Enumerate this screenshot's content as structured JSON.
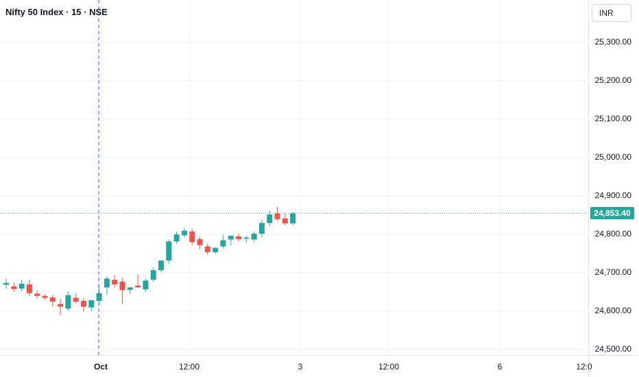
{
  "header": {
    "symbol_title": "Nifty 50 Index · 15 · NSE",
    "currency": "INR",
    "last_price_label": "24,853.40"
  },
  "colors": {
    "up": "#26a69a",
    "down": "#ef5350",
    "grid": "#f0f3fa",
    "axis_text": "#131722",
    "last_price_line": "#26a69a",
    "crosshair": "#2962ff"
  },
  "chart_data": {
    "type": "candlestick",
    "y_axis": {
      "min": 24500,
      "max": 25300,
      "ticks": [
        25300,
        25200,
        25100,
        25000,
        24900,
        24800,
        24700,
        24600,
        24500
      ],
      "tick_labels": [
        "25,300.00",
        "25,200.00",
        "25,100.00",
        "25,000.00",
        "24,900.00",
        "24,800.00",
        "24,700.00",
        "24,600.00",
        "24,500.00"
      ]
    },
    "x_axis": {
      "labels": [
        "Oct",
        "12:00",
        "3",
        "12:00",
        "6",
        "12:0"
      ]
    },
    "last_price": 24853.4,
    "candles": [
      {
        "o": 24667,
        "h": 24683,
        "l": 24657,
        "c": 24672
      },
      {
        "o": 24663,
        "h": 24673,
        "l": 24648,
        "c": 24656
      },
      {
        "o": 24657,
        "h": 24680,
        "l": 24650,
        "c": 24670
      },
      {
        "o": 24668,
        "h": 24681,
        "l": 24637,
        "c": 24645
      },
      {
        "o": 24644,
        "h": 24653,
        "l": 24631,
        "c": 24638
      },
      {
        "o": 24638,
        "h": 24643,
        "l": 24628,
        "c": 24633
      },
      {
        "o": 24634,
        "h": 24640,
        "l": 24610,
        "c": 24623
      },
      {
        "o": 24617,
        "h": 24631,
        "l": 24587,
        "c": 24610
      },
      {
        "o": 24605,
        "h": 24650,
        "l": 24600,
        "c": 24640
      },
      {
        "o": 24633,
        "h": 24645,
        "l": 24618,
        "c": 24623
      },
      {
        "o": 24625,
        "h": 24632,
        "l": 24597,
        "c": 24610
      },
      {
        "o": 24608,
        "h": 24627,
        "l": 24598,
        "c": 24627
      },
      {
        "o": 24625,
        "h": 24665,
        "l": 24615,
        "c": 24645
      },
      {
        "o": 24660,
        "h": 24688,
        "l": 24642,
        "c": 24683
      },
      {
        "o": 24680,
        "h": 24692,
        "l": 24660,
        "c": 24668
      },
      {
        "o": 24675,
        "h": 24685,
        "l": 24618,
        "c": 24653
      },
      {
        "o": 24654,
        "h": 24662,
        "l": 24643,
        "c": 24660
      },
      {
        "o": 24665,
        "h": 24695,
        "l": 24660,
        "c": 24660
      },
      {
        "o": 24655,
        "h": 24683,
        "l": 24648,
        "c": 24678
      },
      {
        "o": 24680,
        "h": 24712,
        "l": 24675,
        "c": 24705
      },
      {
        "o": 24705,
        "h": 24732,
        "l": 24700,
        "c": 24730
      },
      {
        "o": 24730,
        "h": 24785,
        "l": 24722,
        "c": 24780
      },
      {
        "o": 24780,
        "h": 24805,
        "l": 24774,
        "c": 24798
      },
      {
        "o": 24796,
        "h": 24815,
        "l": 24790,
        "c": 24808
      },
      {
        "o": 24806,
        "h": 24813,
        "l": 24770,
        "c": 24778
      },
      {
        "o": 24786,
        "h": 24792,
        "l": 24760,
        "c": 24770
      },
      {
        "o": 24767,
        "h": 24775,
        "l": 24745,
        "c": 24752
      },
      {
        "o": 24752,
        "h": 24765,
        "l": 24747,
        "c": 24763
      },
      {
        "o": 24767,
        "h": 24797,
        "l": 24762,
        "c": 24783
      },
      {
        "o": 24785,
        "h": 24795,
        "l": 24770,
        "c": 24795
      },
      {
        "o": 24793,
        "h": 24800,
        "l": 24780,
        "c": 24786
      },
      {
        "o": 24787,
        "h": 24795,
        "l": 24777,
        "c": 24790
      },
      {
        "o": 24785,
        "h": 24805,
        "l": 24778,
        "c": 24800
      },
      {
        "o": 24800,
        "h": 24835,
        "l": 24790,
        "c": 24828
      },
      {
        "o": 24828,
        "h": 24861,
        "l": 24820,
        "c": 24850
      },
      {
        "o": 24853,
        "h": 24870,
        "l": 24833,
        "c": 24838
      },
      {
        "o": 24840,
        "h": 24855,
        "l": 24822,
        "c": 24827
      },
      {
        "o": 24827,
        "h": 24857,
        "l": 24822,
        "c": 24853
      }
    ]
  }
}
